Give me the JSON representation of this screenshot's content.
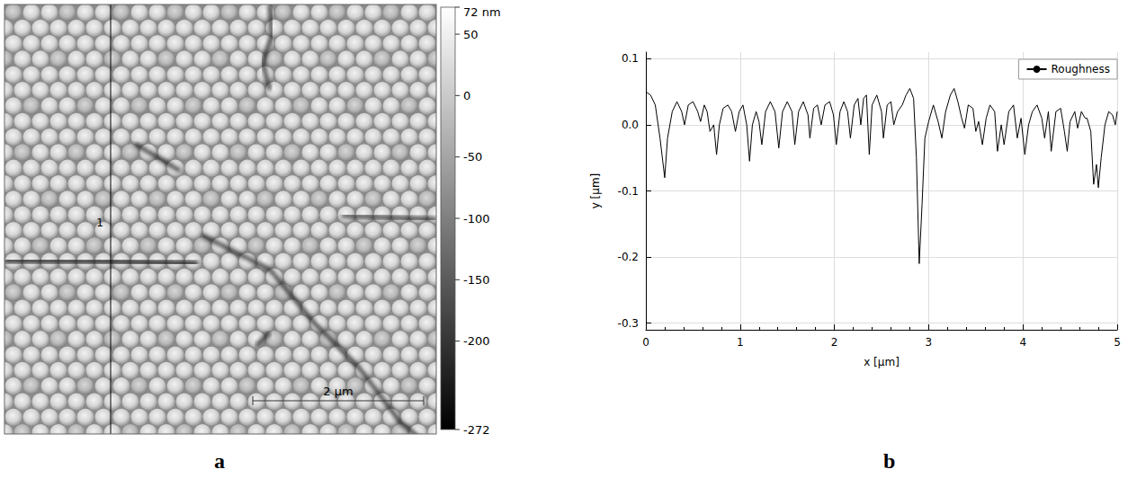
{
  "panel_letters": [
    "a",
    "b"
  ],
  "image": {
    "profile_label": "1",
    "scale_bar": "2 µm",
    "colorbar": {
      "range": [
        -272,
        72
      ],
      "ticks": [
        {
          "value": 72,
          "label": "72 nm"
        },
        50,
        0,
        -50,
        -100,
        -150,
        -200,
        -272
      ]
    }
  },
  "chart_data": {
    "type": "line",
    "x_label": "x [µm]",
    "y_label": "y [µm]",
    "legend": "top-right",
    "grid": true,
    "xlim": [
      0,
      5
    ],
    "xticks": [
      0,
      1,
      2,
      3,
      4,
      5
    ],
    "ylim": [
      -0.31,
      0.11
    ],
    "yticks": [
      -0.3,
      -0.2,
      -0.1,
      {
        "value": 0,
        "label": "0.0"
      },
      0.1
    ],
    "x": [
      0,
      0.05,
      0.1,
      0.15,
      0.2,
      0.23,
      0.28,
      0.33,
      0.38,
      0.41,
      0.45,
      0.5,
      0.55,
      0.58,
      0.62,
      0.65,
      0.68,
      0.72,
      0.75,
      0.78,
      0.82,
      0.87,
      0.91,
      0.95,
      0.99,
      1.03,
      1.07,
      1.1,
      1.13,
      1.17,
      1.2,
      1.23,
      1.27,
      1.32,
      1.37,
      1.41,
      1.45,
      1.5,
      1.55,
      1.58,
      1.62,
      1.67,
      1.72,
      1.74,
      1.78,
      1.82,
      1.86,
      1.9,
      1.95,
      1.99,
      2.02,
      2.06,
      2.1,
      2.14,
      2.17,
      2.21,
      2.25,
      2.28,
      2.31,
      2.34,
      2.37,
      2.4,
      2.45,
      2.5,
      2.52,
      2.56,
      2.6,
      2.63,
      2.67,
      2.72,
      2.76,
      2.8,
      2.84,
      2.87,
      2.9,
      2.93,
      2.96,
      3.0,
      3.05,
      3.1,
      3.14,
      3.18,
      3.23,
      3.27,
      3.31,
      3.35,
      3.38,
      3.42,
      3.47,
      3.5,
      3.53,
      3.57,
      3.61,
      3.65,
      3.7,
      3.73,
      3.77,
      3.8,
      3.85,
      3.9,
      3.94,
      3.98,
      4.02,
      4.06,
      4.1,
      4.15,
      4.2,
      4.23,
      4.27,
      4.3,
      4.35,
      4.4,
      4.44,
      4.47,
      4.5,
      4.55,
      4.58,
      4.62,
      4.66,
      4.68,
      4.72,
      4.75,
      4.78,
      4.8,
      4.83,
      4.87,
      4.91,
      4.95,
      4.98,
      5.0
    ],
    "series": [
      {
        "name": "Roughness",
        "color": "#000000",
        "values": [
          0.05,
          0.045,
          0.03,
          -0.02,
          -0.08,
          -0.02,
          0.02,
          0.035,
          0.02,
          0.0,
          0.03,
          0.035,
          0.02,
          0.005,
          0.03,
          0.02,
          -0.01,
          0.0,
          -0.045,
          0.0,
          0.025,
          0.03,
          0.02,
          -0.01,
          0.02,
          0.03,
          0.0,
          -0.055,
          0.0,
          0.02,
          0.005,
          -0.03,
          0.02,
          0.035,
          0.02,
          -0.035,
          0.02,
          0.035,
          0.02,
          -0.03,
          0.02,
          0.035,
          0.015,
          -0.02,
          0.025,
          0.03,
          0.0,
          0.03,
          0.035,
          0.015,
          -0.03,
          0.02,
          0.035,
          0.02,
          -0.02,
          0.03,
          0.04,
          0.0,
          0.04,
          0.045,
          -0.045,
          0.03,
          0.045,
          0.02,
          -0.02,
          0.03,
          0.035,
          0.0,
          0.02,
          0.03,
          0.045,
          0.055,
          0.04,
          -0.05,
          -0.21,
          -0.12,
          -0.02,
          0.005,
          0.03,
          0.005,
          -0.02,
          0.02,
          0.045,
          0.055,
          0.035,
          0.01,
          -0.005,
          0.03,
          0.025,
          -0.01,
          0.005,
          -0.03,
          0.01,
          0.03,
          0.02,
          -0.04,
          0.0,
          -0.03,
          0.02,
          0.03,
          -0.02,
          0.01,
          -0.045,
          0.0,
          0.02,
          0.03,
          0.01,
          -0.02,
          0.02,
          -0.04,
          0.02,
          0.025,
          -0.01,
          -0.04,
          0.005,
          0.02,
          -0.005,
          0.02,
          0.01,
          0.01,
          -0.01,
          -0.09,
          -0.06,
          -0.095,
          -0.05,
          0.0,
          0.02,
          0.015,
          0.0,
          0.02
        ]
      }
    ]
  }
}
